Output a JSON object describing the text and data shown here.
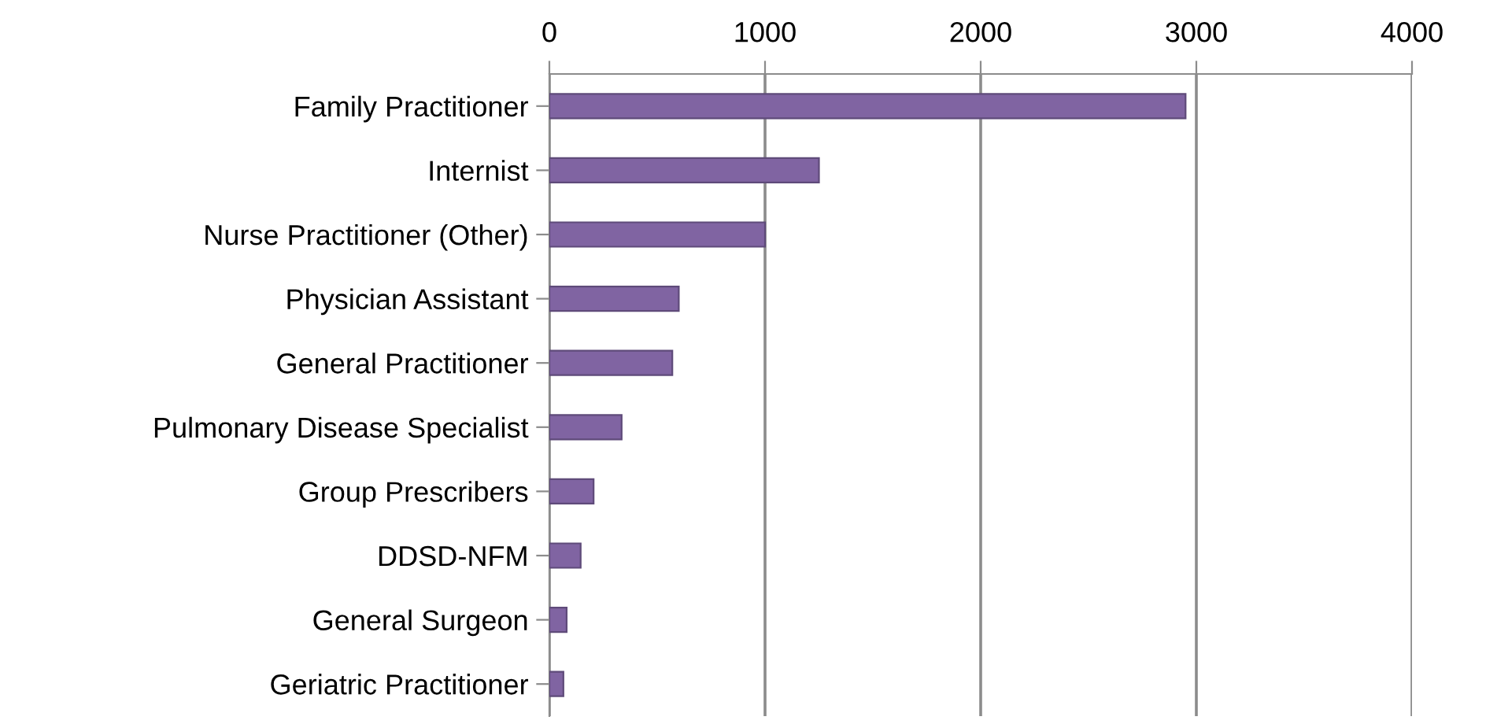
{
  "chart_data": {
    "type": "bar",
    "orientation": "horizontal",
    "categories": [
      "Family Practitioner",
      "Internist",
      "Nurse Practitioner (Other)",
      "Physician Assistant",
      "General Practitioner",
      "Pulmonary Disease Specialist",
      "Group Prescribers",
      "DDSD-NFM",
      "General Surgeon",
      "Geriatric Practitioner"
    ],
    "values": [
      2950,
      1250,
      1000,
      600,
      570,
      335,
      205,
      145,
      80,
      65
    ],
    "color": "#8064a2",
    "xlim": [
      0,
      4000
    ],
    "xticks": [
      0,
      1000,
      2000,
      3000,
      4000
    ],
    "grid": "x"
  }
}
